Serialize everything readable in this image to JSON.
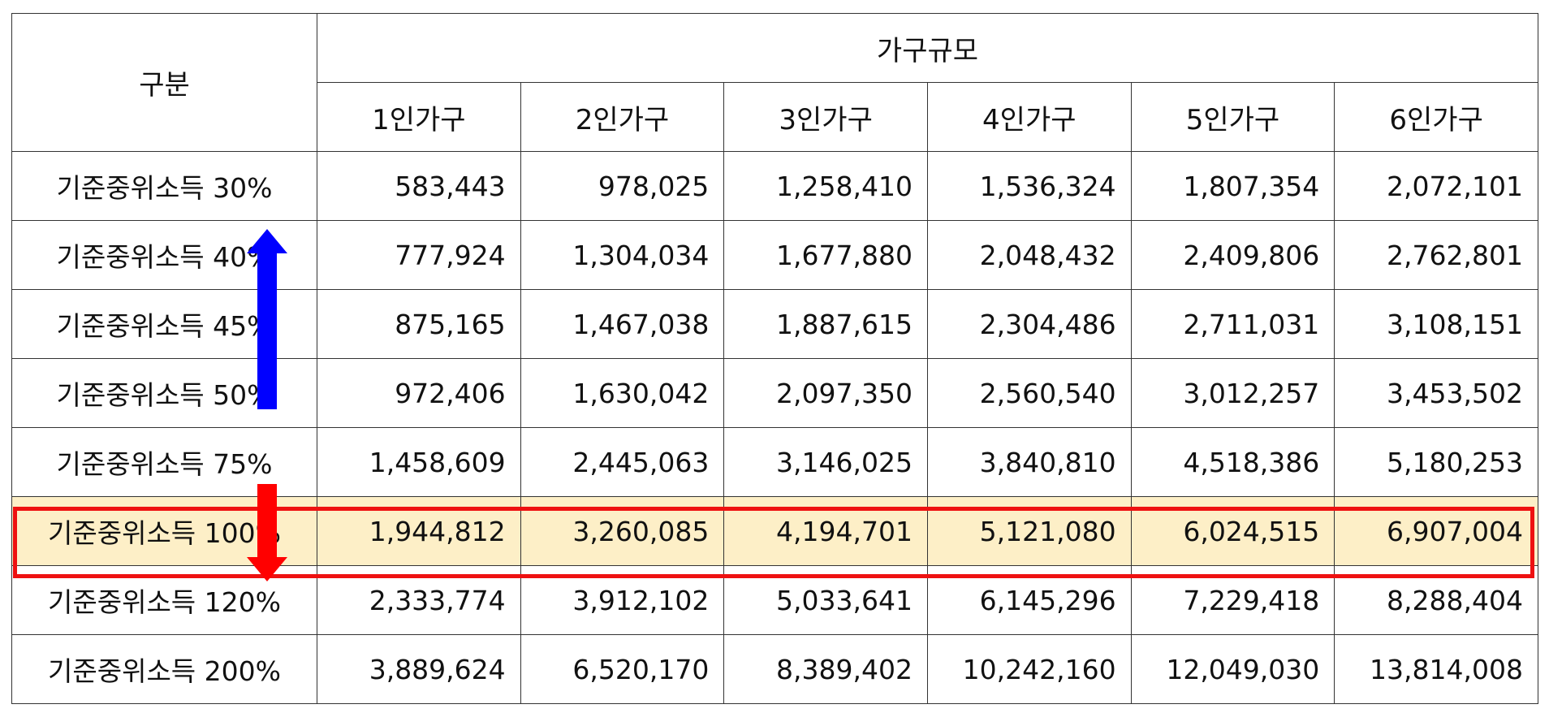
{
  "header": {
    "category_label": "구분",
    "group_label": "가구규모",
    "columns": [
      "1인가구",
      "2인가구",
      "3인가구",
      "4인가구",
      "5인가구",
      "6인가구"
    ]
  },
  "rows": [
    {
      "label": "기준중위소득 30%",
      "values": [
        "583,443",
        "978,025",
        "1,258,410",
        "1,536,324",
        "1,807,354",
        "2,072,101"
      ]
    },
    {
      "label": "기준중위소득 40%",
      "values": [
        "777,924",
        "1,304,034",
        "1,677,880",
        "2,048,432",
        "2,409,806",
        "2,762,801"
      ]
    },
    {
      "label": "기준중위소득 45%",
      "values": [
        "875,165",
        "1,467,038",
        "1,887,615",
        "2,304,486",
        "2,711,031",
        "3,108,151"
      ]
    },
    {
      "label": "기준중위소득 50%",
      "values": [
        "972,406",
        "1,630,042",
        "2,097,350",
        "2,560,540",
        "3,012,257",
        "3,453,502"
      ]
    },
    {
      "label": "기준중위소득 75%",
      "values": [
        "1,458,609",
        "2,445,063",
        "3,146,025",
        "3,840,810",
        "4,518,386",
        "5,180,253"
      ]
    },
    {
      "label": "기준중위소득 100%",
      "values": [
        "1,944,812",
        "3,260,085",
        "4,194,701",
        "5,121,080",
        "6,024,515",
        "6,907,004"
      ]
    },
    {
      "label": "기준중위소득 120%",
      "values": [
        "2,333,774",
        "3,912,102",
        "5,033,641",
        "6,145,296",
        "7,229,418",
        "8,288,404"
      ]
    },
    {
      "label": "기준중위소득 200%",
      "values": [
        "3,889,624",
        "6,520,170",
        "8,389,402",
        "10,242,160",
        "12,049,030",
        "13,814,008"
      ]
    }
  ],
  "highlight": {
    "row_label": "기준중위소득 100%",
    "fill_color": "#fdefc7",
    "border_color": "#ee1111"
  },
  "arrows": {
    "up_color": "#0000ff",
    "down_color": "#ff0000"
  }
}
